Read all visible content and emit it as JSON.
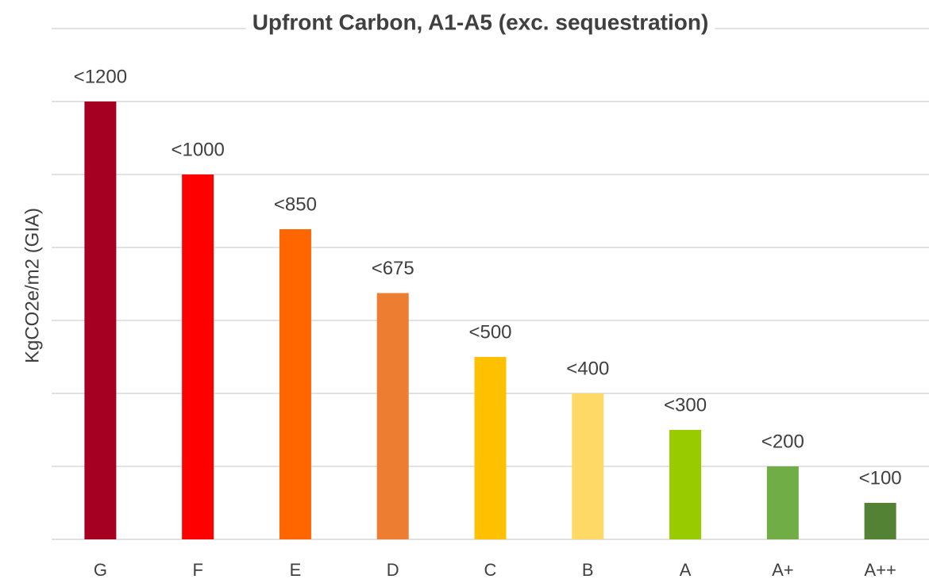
{
  "chart_data": {
    "type": "bar",
    "title": "Upfront Carbon, A1-A5 (exc. sequestration)",
    "y_label": "KgCO2e/m2 (GIA)",
    "categories": [
      "G",
      "F",
      "E",
      "D",
      "C",
      "B",
      "A",
      "A+",
      "A++"
    ],
    "values": [
      1200,
      1000,
      850,
      675,
      500,
      400,
      300,
      200,
      100
    ],
    "value_labels": [
      "<1200",
      "<1000",
      "<850",
      "<675",
      "<500",
      "<400",
      "<300",
      "<200",
      "<100"
    ],
    "colors": [
      "#a50021",
      "#ff0000",
      "#ff6600",
      "#ed7d31",
      "#ffc000",
      "#ffd966",
      "#99cc00",
      "#70ad47",
      "#548235"
    ],
    "ylim": [
      0,
      1400
    ],
    "yticks": [
      0,
      200,
      400,
      600,
      800,
      1000,
      1200,
      1400
    ],
    "grid": true
  }
}
